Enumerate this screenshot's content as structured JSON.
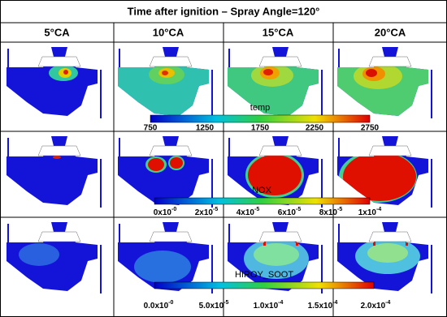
{
  "title": "Time after ignition – Spray Angle=120°",
  "columns": [
    "5°CA",
    "10°CA",
    "15°CA",
    "20°CA"
  ],
  "colorbars": [
    {
      "label": "temp",
      "ticks": [
        {
          "text": "750"
        },
        {
          "text": "1250"
        },
        {
          "text": "1750"
        },
        {
          "text": "2250"
        },
        {
          "text": "2750"
        }
      ]
    },
    {
      "label": "NOX",
      "ticks": [
        {
          "text": "0x10",
          "exp": "-0"
        },
        {
          "text": "2x10",
          "exp": "-5"
        },
        {
          "text": "4x10",
          "exp": "-5"
        },
        {
          "text": "6x10",
          "exp": "-5"
        },
        {
          "text": "8x10",
          "exp": "-5"
        },
        {
          "text": "1x10",
          "exp": "-4"
        }
      ]
    },
    {
      "label": "HIROY_SOOT",
      "ticks": [
        {
          "text": "0.0x10",
          "exp": "-0"
        },
        {
          "text": "5.0x10",
          "exp": "-5"
        },
        {
          "text": "1.0x10",
          "exp": "-4"
        },
        {
          "text": "1.5x10",
          "exp": "-4"
        },
        {
          "text": "2.0x10",
          "exp": "-4"
        }
      ]
    }
  ]
}
